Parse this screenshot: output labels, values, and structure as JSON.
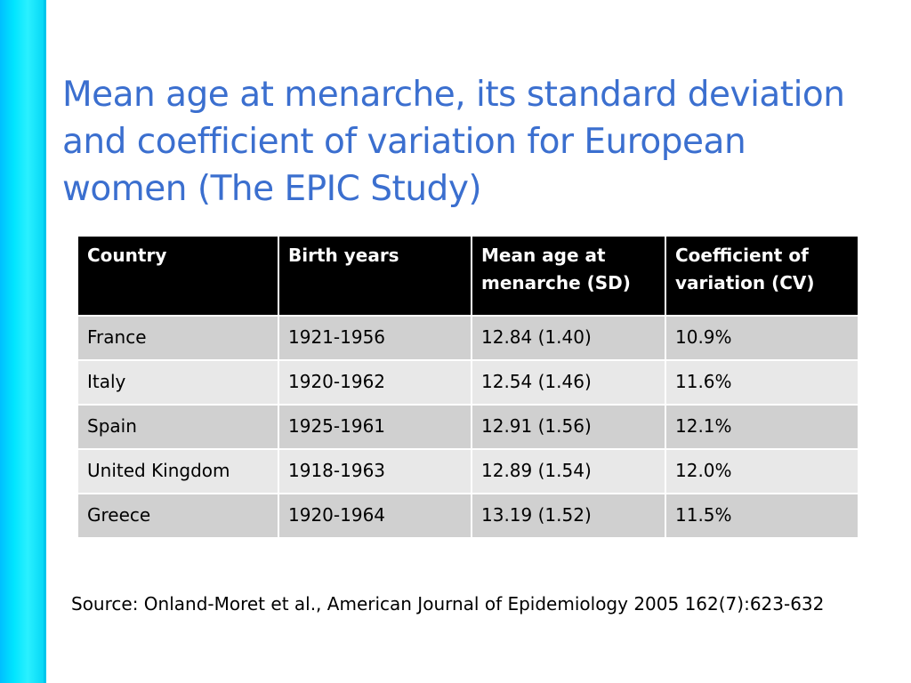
{
  "slide": {
    "title": "Mean age at menarche, its standard deviation and coefficient of variation for European women (The EPIC Study)",
    "source": "Source: Onland-Moret et al., American Journal of Epidemiology 2005 162(7):623-632",
    "accent_color": "#3b6fcf",
    "sidebar_color": "#00e5ff"
  },
  "table": {
    "headers": [
      "Country",
      "Birth years",
      "Mean age at menarche (SD)",
      "Coefficient of variation (CV)"
    ],
    "rows": [
      [
        "France",
        "1921-1956",
        "12.84 (1.40)",
        "10.9%"
      ],
      [
        "Italy",
        "1920-1962",
        "12.54 (1.46)",
        "11.6%"
      ],
      [
        "Spain",
        "1925-1961",
        "12.91 (1.56)",
        "12.1%"
      ],
      [
        "United Kingdom",
        "1918-1963",
        "12.89 (1.54)",
        "12.0%"
      ],
      [
        "Greece",
        "1920-1964",
        "13.19 (1.52)",
        "11.5%"
      ]
    ]
  }
}
